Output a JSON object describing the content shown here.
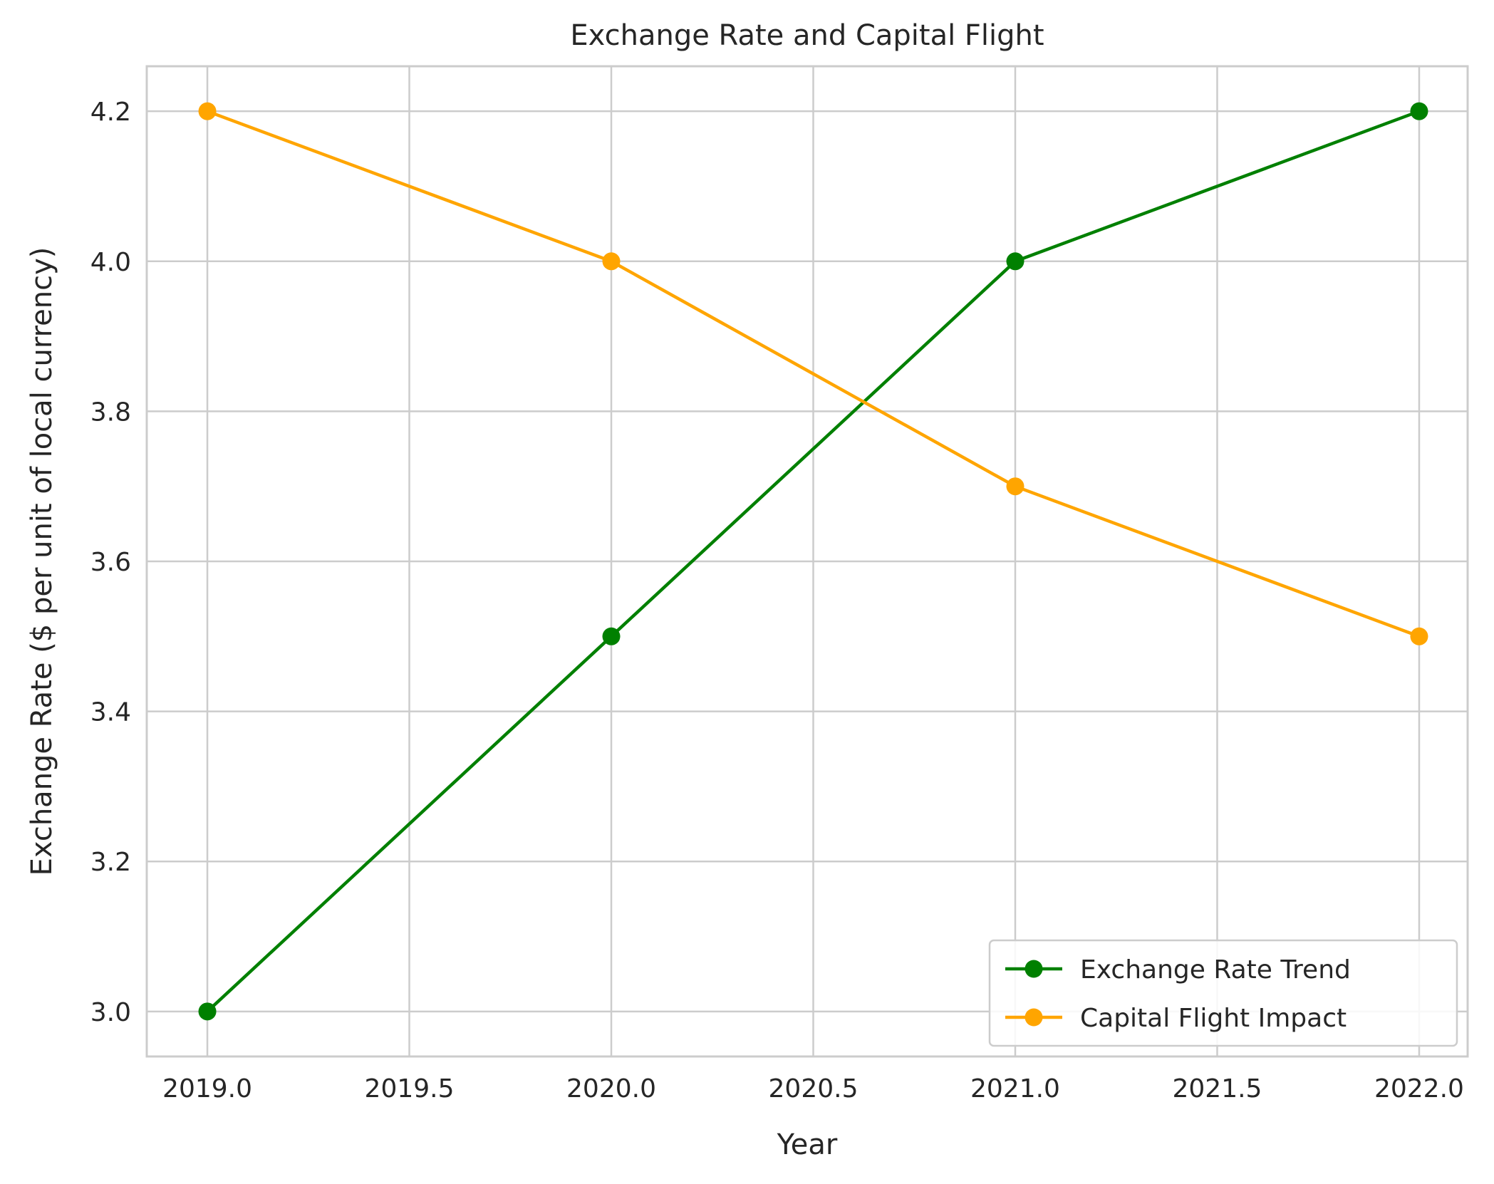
{
  "chart_data": {
    "type": "line",
    "title": "Exchange Rate and Capital Flight",
    "xlabel": "Year",
    "ylabel": "Exchange Rate ($ per unit of local currency)",
    "x": [
      2019,
      2020,
      2021,
      2022
    ],
    "xlim": [
      2018.85,
      2022.12
    ],
    "ylim": [
      2.94,
      4.26
    ],
    "xticks": [
      2019.0,
      2019.5,
      2020.0,
      2020.5,
      2021.0,
      2021.5,
      2022.0
    ],
    "xtick_labels": [
      "2019.0",
      "2019.5",
      "2020.0",
      "2020.5",
      "2021.0",
      "2021.5",
      "2022.0"
    ],
    "yticks": [
      3.0,
      3.2,
      3.4,
      3.6,
      3.8,
      4.0,
      4.2
    ],
    "ytick_labels": [
      "3.0",
      "3.2",
      "3.4",
      "3.6",
      "3.8",
      "4.0",
      "4.2"
    ],
    "grid": true,
    "legend_position": "lower-right",
    "series": [
      {
        "name": "Exchange Rate Trend",
        "color": "#008000",
        "marker": "circle",
        "values": [
          3.0,
          3.5,
          4.0,
          4.2
        ]
      },
      {
        "name": "Capital Flight Impact",
        "color": "#ffa500",
        "marker": "circle",
        "values": [
          4.2,
          4.0,
          3.7,
          3.5
        ]
      }
    ]
  }
}
